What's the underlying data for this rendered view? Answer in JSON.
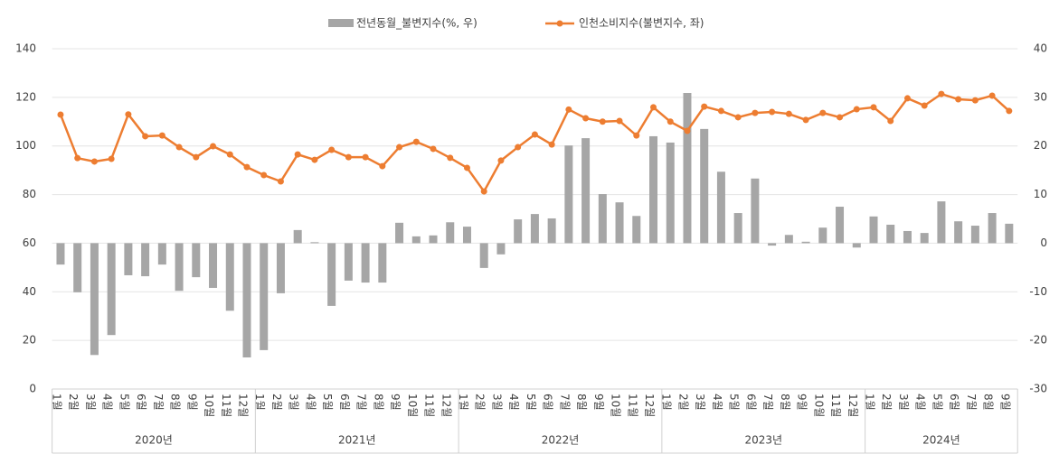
{
  "chart_data": {
    "type": "combo",
    "categories": [
      "1월",
      "2월",
      "3월",
      "4월",
      "5월",
      "6월",
      "7월",
      "8월",
      "9월",
      "10월",
      "11월",
      "12월",
      "1월",
      "2월",
      "3월",
      "4월",
      "5월",
      "6월",
      "7월",
      "8월",
      "9월",
      "10월",
      "11월",
      "12월",
      "1월",
      "2월",
      "3월",
      "4월",
      "5월",
      "6월",
      "7월",
      "8월",
      "9월",
      "10월",
      "11월",
      "12월",
      "1월",
      "2월",
      "3월",
      "4월",
      "5월",
      "6월",
      "7월",
      "8월",
      "9월",
      "10월",
      "11월",
      "12월",
      "1월",
      "2월",
      "3월",
      "4월",
      "5월",
      "6월",
      "7월",
      "8월",
      "9월"
    ],
    "years": [
      "2020년",
      "2021년",
      "2022년",
      "2023년",
      "2024년"
    ],
    "series": [
      {
        "name": "전년동월_불변지수(%, 우)",
        "type": "bar",
        "axis": "y2",
        "color": "#a6a6a6",
        "values": [
          -4.4,
          -10.1,
          -23,
          -18.9,
          -6.6,
          -6.8,
          -4.4,
          -9.8,
          -7,
          -9.2,
          -13.9,
          -23.5,
          -22,
          -10.3,
          2.7,
          0.2,
          -12.9,
          -7.7,
          -8.1,
          -8.1,
          4.2,
          1.4,
          1.6,
          4.3,
          3.4,
          -5.1,
          -2.3,
          4.9,
          6,
          5.1,
          20.1,
          21.6,
          10.1,
          8.4,
          5.6,
          22,
          20.7,
          30.9,
          23.5,
          14.7,
          6.2,
          13.3,
          -0.5,
          1.7,
          0.3,
          3.2,
          7.5,
          -0.9,
          5.5,
          3.8,
          2.5,
          2.1,
          8.6,
          4.5,
          3.6,
          6.2,
          4
        ]
      },
      {
        "name": "인천소비지수(불변지수, 좌)",
        "type": "line",
        "color": "#ed7d31",
        "values": [
          112.9,
          95,
          93.6,
          94.7,
          113,
          104,
          104.3,
          99.5,
          95.4,
          99.9,
          96.5,
          91.3,
          88,
          85.4,
          96.5,
          94.3,
          98.4,
          95.4,
          95.4,
          91.7,
          99.5,
          101.7,
          98.8,
          95.1,
          91,
          81.3,
          94,
          99.5,
          104.7,
          100.6,
          115,
          111.4,
          110,
          110.3,
          104.3,
          115.9,
          110,
          106.2,
          116.2,
          114.4,
          111.8,
          113.6,
          114,
          113.2,
          110.7,
          113.6,
          111.8,
          115.1,
          115.9,
          110.3,
          119.6,
          116.6,
          121.4,
          119.2,
          118.8,
          120.7,
          114.4
        ]
      }
    ],
    "ylim": [
      0,
      140
    ],
    "yticks": [
      0,
      20,
      40,
      60,
      80,
      100,
      120,
      140
    ],
    "y2lim": [
      -30,
      40
    ],
    "y2ticks": [
      -30,
      -20,
      -10,
      0,
      10,
      20,
      30,
      40
    ],
    "grid": true,
    "legend": "top"
  }
}
